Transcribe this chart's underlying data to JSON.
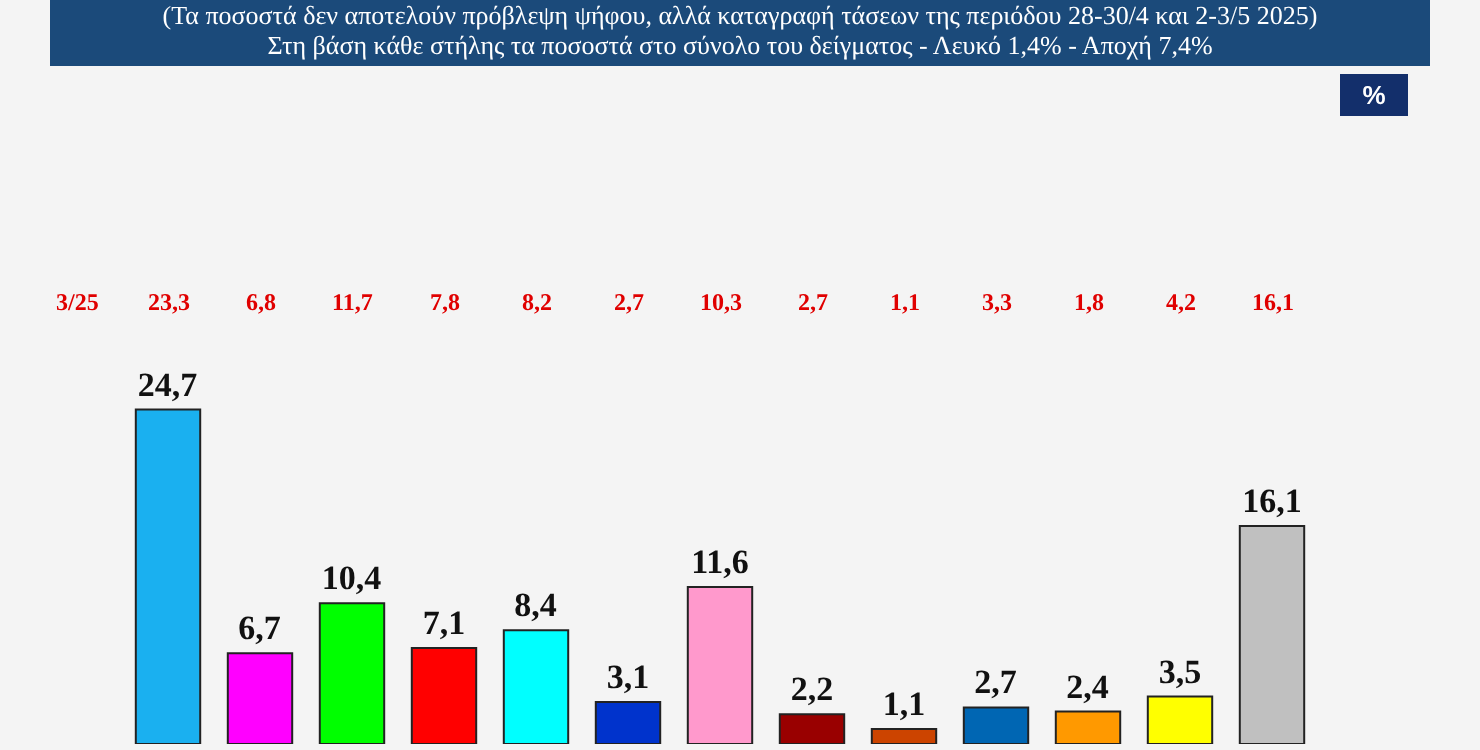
{
  "chart_data": {
    "type": "bar",
    "title": "(Τα ποσοστά δεν αποτελούν πρόβλεψη ψήφου, αλλά καταγραφή τάσεων της περιόδου  28-30/4 και 2-3/5 2025)",
    "subtitle": "Στη βάση κάθε στήλης τα ποσοστά στο σύνολο του δείγματος - Λευκό 1,4% - Αποχή 7,4%",
    "categories": [
      null,
      null,
      null,
      null,
      null,
      null,
      null,
      null,
      null,
      null,
      null,
      null,
      null
    ],
    "values": [
      24.7,
      6.7,
      10.4,
      7.1,
      8.4,
      3.1,
      11.6,
      2.2,
      1.1,
      2.7,
      2.4,
      3.5,
      16.1
    ],
    "value_labels": [
      "24,7",
      "6,7",
      "10,4",
      "7,1",
      "8,4",
      "3,1",
      "11,6",
      "2,2",
      "1,1",
      "2,7",
      "2,4",
      "3,5",
      "16,1"
    ],
    "colors": [
      "#1ab0f0",
      "#ff00ff",
      "#00ff00",
      "#ff0000",
      "#00ffff",
      "#0033cc",
      "#ff99cc",
      "#990000",
      "#cc4400",
      "#0066b3",
      "#ff9900",
      "#ffff00",
      "#c0c0c0"
    ],
    "annotations": [
      "%",
      "3/25",
      "23,3",
      "6,8",
      "11,7",
      "7,8",
      "8,2",
      "2,7",
      "10,3",
      "2,7",
      "1,1",
      "3,3",
      "1,8",
      "4,2",
      "16,1"
    ],
    "tick_labels": false
  }
}
